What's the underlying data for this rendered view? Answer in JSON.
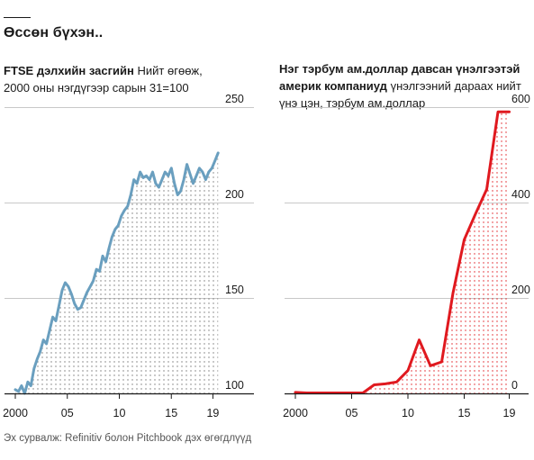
{
  "headline": "Өссөн бүхэн..",
  "source": "Эх сурвалж: Refinitiv болон Pitchbook дэх өгөгдлүүд",
  "colors": {
    "ftse_line": "#6a9fbf",
    "companies_line": "#e0191f",
    "left_dots": "#777777",
    "right_dots": "#e0191f",
    "grid": "#c8c8c8",
    "axis": "#1a1a1a"
  },
  "chart_data": [
    {
      "type": "line",
      "title_bold": "FTSE дэлхийн засгийн",
      "title_rest": "Нийт өгөөж, 2000 оны нэгдүгээр сарын 31=100",
      "x_ticks": [
        "2000",
        "05",
        "10",
        "15",
        "19"
      ],
      "y_ticks": [
        "250",
        "200",
        "150",
        "100"
      ],
      "ylim": [
        100,
        250
      ],
      "y_axis": "right",
      "grid": true,
      "series": [
        {
          "x": [
            2000.0,
            2000.3,
            2000.6,
            2000.9,
            2001.2,
            2001.5,
            2001.8,
            2002.1,
            2002.4,
            2002.7,
            2003.0,
            2003.3,
            2003.6,
            2003.9,
            2004.2,
            2004.5,
            2004.8,
            2005.1,
            2005.4,
            2005.7,
            2006.0,
            2006.3,
            2006.6,
            2006.9,
            2007.2,
            2007.5,
            2007.8,
            2008.1,
            2008.4,
            2008.7,
            2009.0,
            2009.3,
            2009.6,
            2009.9,
            2010.2,
            2010.5,
            2010.8,
            2011.1,
            2011.4,
            2011.7,
            2012.0,
            2012.3,
            2012.6,
            2012.9,
            2013.2,
            2013.5,
            2013.8,
            2014.1,
            2014.4,
            2014.7,
            2015.0,
            2015.3,
            2015.6,
            2015.9,
            2016.2,
            2016.5,
            2016.8,
            2017.1,
            2017.4,
            2017.7,
            2018.0,
            2018.3,
            2018.6,
            2018.9,
            2019.2,
            2019.5
          ],
          "values": [
            102,
            101,
            104,
            100,
            106,
            104,
            113,
            118,
            122,
            128,
            126,
            133,
            140,
            138,
            146,
            154,
            158,
            156,
            152,
            147,
            144,
            145,
            149,
            153,
            156,
            159,
            165,
            164,
            172,
            169,
            176,
            182,
            186,
            188,
            193,
            196,
            198,
            204,
            212,
            210,
            216,
            213,
            214,
            212,
            216,
            210,
            208,
            212,
            216,
            214,
            218,
            210,
            204,
            206,
            212,
            220,
            215,
            210,
            214,
            218,
            216,
            212,
            216,
            218,
            222,
            226
          ]
        }
      ]
    },
    {
      "type": "area",
      "title_bold": "Нэг тэрбум ам.доллар давсан үнэлгээтэй америк компаниуд",
      "title_rest": "үнэлгээний дараах нийт үнэ цэн, тэрбум ам.доллар",
      "x_ticks": [
        "2000",
        "05",
        "10",
        "15",
        "19"
      ],
      "y_ticks": [
        "600",
        "400",
        "200",
        "0"
      ],
      "ylim": [
        0,
        600
      ],
      "y_axis": "right",
      "grid": true,
      "series": [
        {
          "x": [
            2000,
            2001,
            2002,
            2003,
            2004,
            2005,
            2006,
            2007,
            2008,
            2009,
            2010,
            2011,
            2012,
            2013,
            2014,
            2015,
            2016,
            2017,
            2018,
            2019
          ],
          "values": [
            2,
            1,
            1,
            1,
            1,
            1,
            1,
            18,
            20,
            24,
            48,
            112,
            58,
            66,
            210,
            322,
            376,
            428,
            590,
            590
          ]
        }
      ]
    }
  ]
}
